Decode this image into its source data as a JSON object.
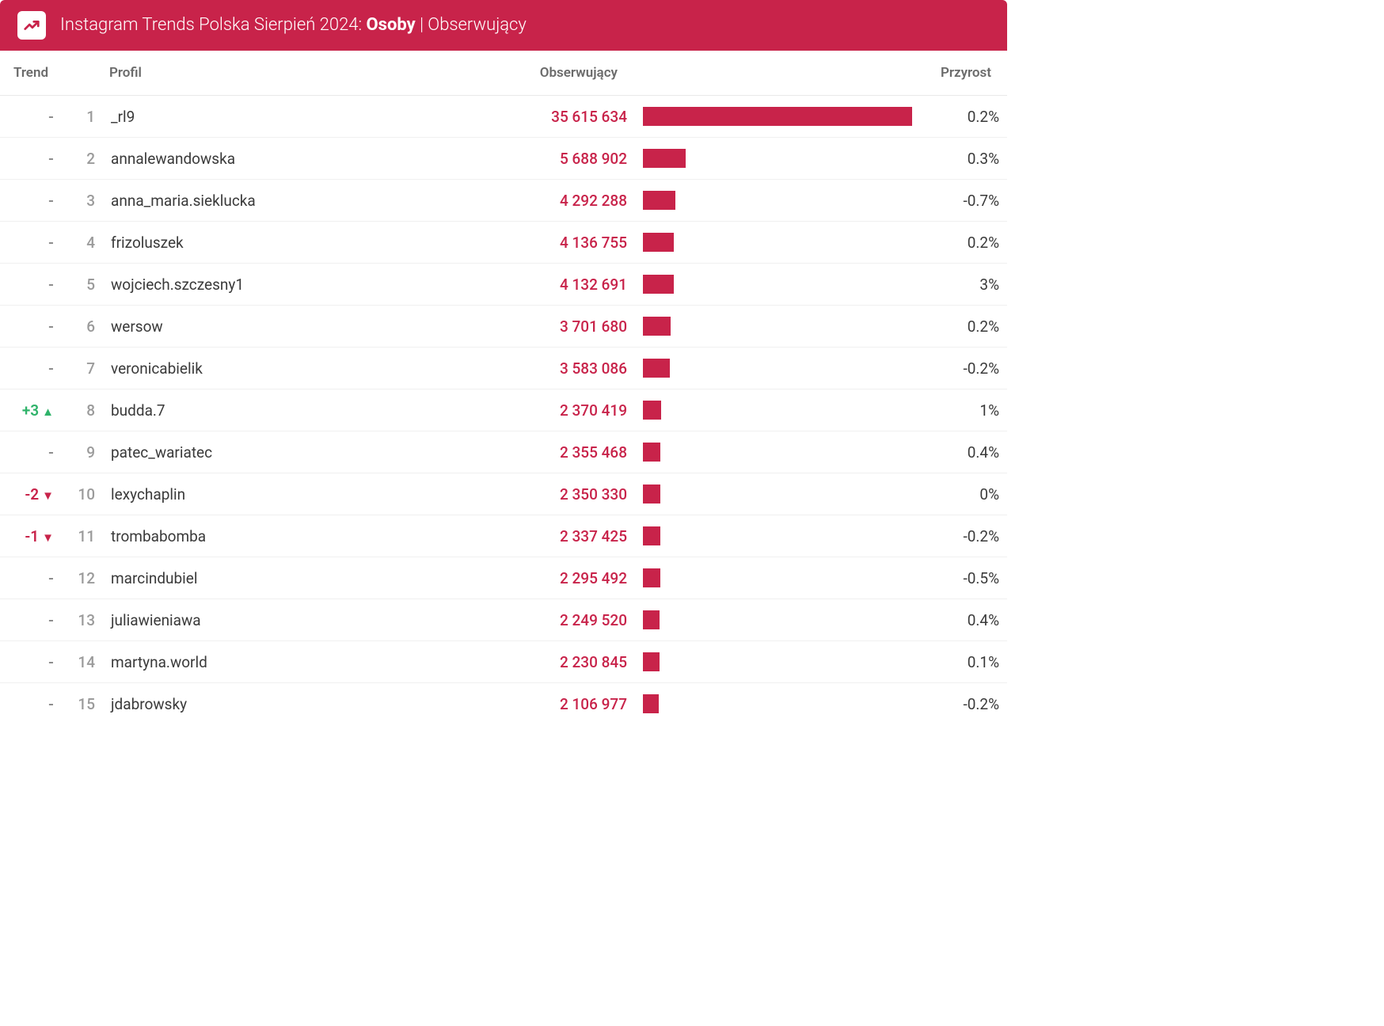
{
  "colors": {
    "brand": "#c8234a",
    "header_text": "#ffffff",
    "row_border": "#f0f0f0",
    "header_border": "#e9e9e9",
    "text_muted": "#9b9b9b",
    "text_body": "#3a3a3a",
    "trend_up": "#2fb36a",
    "trend_down": "#c8234a",
    "bar_fill": "#c8234a",
    "bar_track": "transparent"
  },
  "header": {
    "prefix": "Instagram Trends Polska Sierpień 2024: ",
    "bold": "Osoby",
    "suffix": " | Obserwujący"
  },
  "columns": {
    "trend": "Trend",
    "profile": "Profil",
    "followers": "Obserwujący",
    "growth": "Przyrost"
  },
  "bar_max_value": 35615634,
  "rows": [
    {
      "trend_delta": 0,
      "rank": 1,
      "profile": "_rl9",
      "followers": 35615634,
      "followers_display": "35 615 634",
      "growth": "0.2%"
    },
    {
      "trend_delta": 0,
      "rank": 2,
      "profile": "annalewandowska",
      "followers": 5688902,
      "followers_display": "5 688 902",
      "growth": "0.3%"
    },
    {
      "trend_delta": 0,
      "rank": 3,
      "profile": "anna_maria.sieklucka",
      "followers": 4292288,
      "followers_display": "4 292 288",
      "growth": "-0.7%"
    },
    {
      "trend_delta": 0,
      "rank": 4,
      "profile": "frizoluszek",
      "followers": 4136755,
      "followers_display": "4 136 755",
      "growth": "0.2%"
    },
    {
      "trend_delta": 0,
      "rank": 5,
      "profile": "wojciech.szczesny1",
      "followers": 4132691,
      "followers_display": "4 132 691",
      "growth": "3%"
    },
    {
      "trend_delta": 0,
      "rank": 6,
      "profile": "wersow",
      "followers": 3701680,
      "followers_display": "3 701 680",
      "growth": "0.2%"
    },
    {
      "trend_delta": 0,
      "rank": 7,
      "profile": "veronicabielik",
      "followers": 3583086,
      "followers_display": "3 583 086",
      "growth": "-0.2%"
    },
    {
      "trend_delta": 3,
      "rank": 8,
      "profile": "budda.7",
      "followers": 2370419,
      "followers_display": "2 370 419",
      "growth": "1%"
    },
    {
      "trend_delta": 0,
      "rank": 9,
      "profile": "patec_wariatec",
      "followers": 2355468,
      "followers_display": "2 355 468",
      "growth": "0.4%"
    },
    {
      "trend_delta": -2,
      "rank": 10,
      "profile": "lexychaplin",
      "followers": 2350330,
      "followers_display": "2 350 330",
      "growth": "0%"
    },
    {
      "trend_delta": -1,
      "rank": 11,
      "profile": "trombabomba",
      "followers": 2337425,
      "followers_display": "2 337 425",
      "growth": "-0.2%"
    },
    {
      "trend_delta": 0,
      "rank": 12,
      "profile": "marcindubiel",
      "followers": 2295492,
      "followers_display": "2 295 492",
      "growth": "-0.5%"
    },
    {
      "trend_delta": 0,
      "rank": 13,
      "profile": "juliawieniawa",
      "followers": 2249520,
      "followers_display": "2 249 520",
      "growth": "0.4%"
    },
    {
      "trend_delta": 0,
      "rank": 14,
      "profile": "martyna.world",
      "followers": 2230845,
      "followers_display": "2 230 845",
      "growth": "0.1%"
    },
    {
      "trend_delta": 0,
      "rank": 15,
      "profile": "jdabrowsky",
      "followers": 2106977,
      "followers_display": "2 106 977",
      "growth": "-0.2%"
    }
  ]
}
